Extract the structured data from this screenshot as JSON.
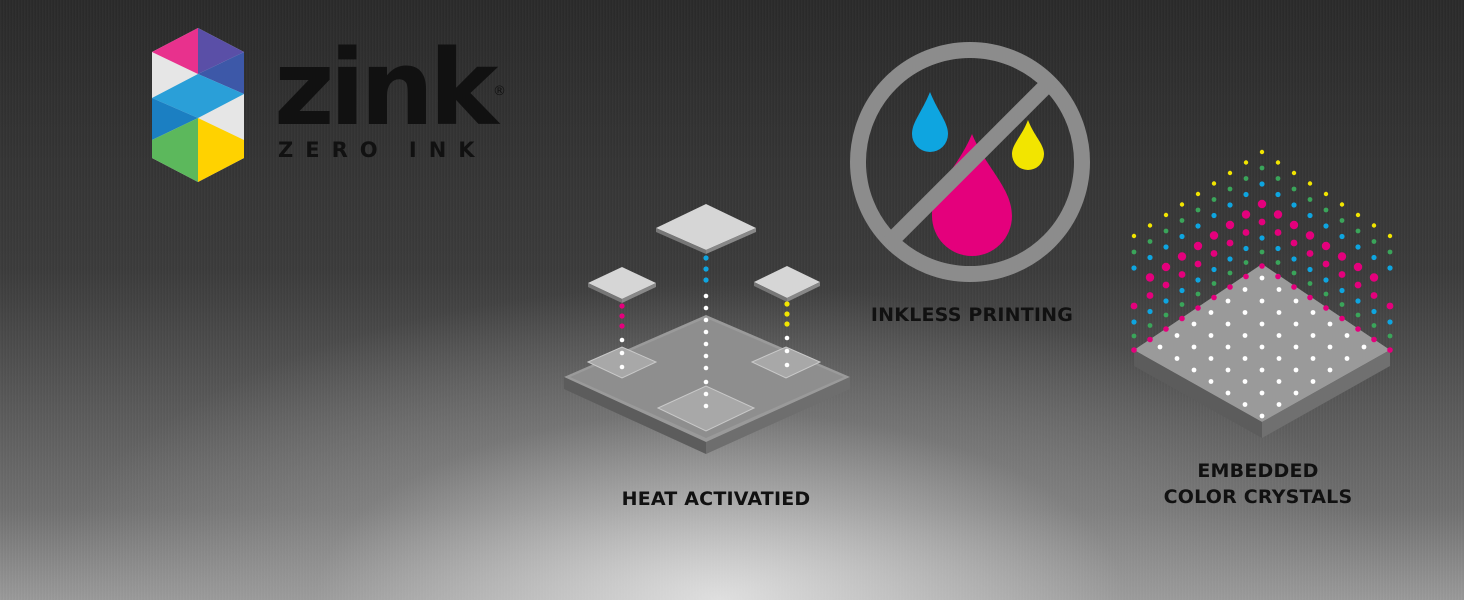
{
  "logo": {
    "wordmark": "zink",
    "registered": "®",
    "tagline": "ZERO INK",
    "colors": [
      "#e8318d",
      "#5a4fa7",
      "#2a9fd8",
      "#5cb85c",
      "#ffd200",
      "#e6e6e6"
    ]
  },
  "features": [
    {
      "label": "HEAT ACTIVATIED",
      "icon": "heat-layers-icon"
    },
    {
      "label": "INKLESS PRINTING",
      "icon": "no-ink-icon"
    },
    {
      "label_line1": "EMBEDDED",
      "label_line2": "COLOR CRYSTALS",
      "icon": "color-crystals-icon"
    }
  ],
  "colors": {
    "cyan": "#0ea5e0",
    "magenta": "#e4007c",
    "yellow": "#f2e500",
    "green": "#3aa55a",
    "panel": "#8c8c8c"
  }
}
